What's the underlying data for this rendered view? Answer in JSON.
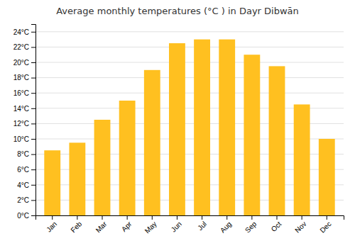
{
  "chart_data": {
    "type": "bar",
    "title": "Average monthly temperatures (°C ) in Dayr Dibwān",
    "categories": [
      "Jan",
      "Feb",
      "Mar",
      "Apr",
      "May",
      "Jun",
      "Jul",
      "Aug",
      "Sep",
      "Oct",
      "Nov",
      "Dec"
    ],
    "values": [
      8.5,
      9.5,
      12.5,
      15.0,
      19.0,
      22.5,
      23.0,
      23.0,
      21.0,
      19.5,
      14.5,
      10.0
    ],
    "color": "#FFC020",
    "ylim": [
      0,
      25
    ],
    "yticks": [
      {
        "value": 0,
        "label": "0°C"
      },
      {
        "value": 2,
        "label": "2°C"
      },
      {
        "value": 4,
        "label": "4°C"
      },
      {
        "value": 6,
        "label": "6°C"
      },
      {
        "value": 8,
        "label": "8°C"
      },
      {
        "value": 10,
        "label": "10°C"
      },
      {
        "value": 12,
        "label": "12°C"
      },
      {
        "value": 14,
        "label": "14°C"
      },
      {
        "value": 16,
        "label": "16°C"
      },
      {
        "value": 18,
        "label": "18°C"
      },
      {
        "value": 20,
        "label": "20°C"
      },
      {
        "value": 22,
        "label": "22°C"
      },
      {
        "value": 24,
        "label": "24°C"
      }
    ],
    "grid": true
  }
}
